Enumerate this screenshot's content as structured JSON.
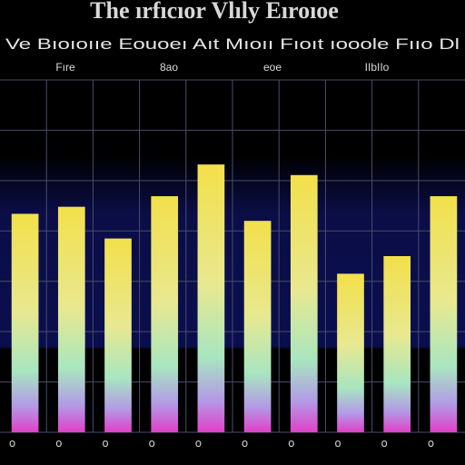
{
  "chart_data": {
    "type": "bar",
    "title": "The ırfıcıor Vlıly Eıroıoe",
    "subtitle": "Ve Bıoıoııe Eouoeı Aıt Mıoıı Fıoıt ıooole Fııo Dl",
    "column_headers": [
      "Fıre",
      "8ao",
      "eoe",
      "IIbIIo"
    ],
    "categories": [
      "o",
      "o",
      "o",
      "o",
      "o",
      "o",
      "o",
      "o",
      "o",
      "o"
    ],
    "values": [
      62,
      64,
      55,
      67,
      76,
      60,
      73,
      45,
      50,
      67
    ],
    "ylim": [
      0,
      100
    ],
    "grid": true,
    "gradient_colors": {
      "top": "#f2e04a",
      "upper": "#e8e890",
      "middle": "#a8e6c0",
      "lower": "#b39ae6",
      "bottom": "#e040c8"
    },
    "background_top": "#0b0f4a",
    "background_bottom": "#000000"
  }
}
